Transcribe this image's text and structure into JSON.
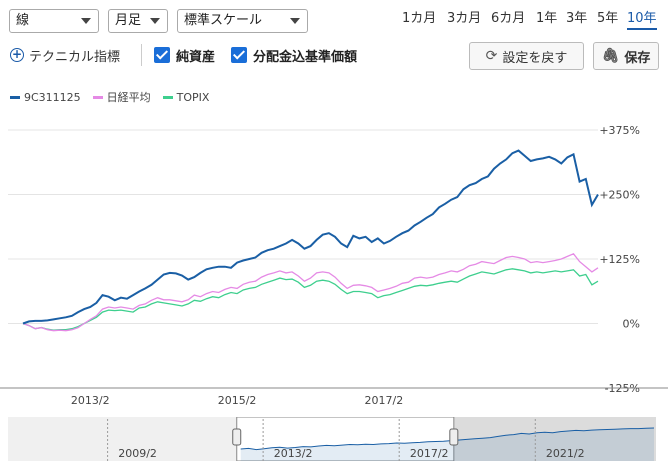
{
  "controls": {
    "chart_type": "線",
    "interval": "月足",
    "scale": "標準スケール"
  },
  "periods": [
    {
      "label": "1カ月",
      "active": false
    },
    {
      "label": "3カ月",
      "active": false
    },
    {
      "label": "6カ月",
      "active": false
    },
    {
      "label": "1年",
      "active": false
    },
    {
      "label": "3年",
      "active": false
    },
    {
      "label": "5年",
      "active": false
    },
    {
      "label": "10年",
      "active": true
    }
  ],
  "toolbar": {
    "technical_label": "テクニカル指標",
    "net_assets_label": "純資産",
    "nav_label": "分配金込基準価額",
    "reset_label": "設定を戻す",
    "save_label": "保存"
  },
  "legend": [
    {
      "name": "9C311125",
      "color": "#1a5fa5"
    },
    {
      "name": "日経平均",
      "color": "#e58ae5"
    },
    {
      "name": "TOPIX",
      "color": "#3ecf8e"
    }
  ],
  "chart_data": {
    "type": "line",
    "ylim": [
      -125,
      375
    ],
    "y_ticks": [
      -125,
      0,
      125,
      250,
      375
    ],
    "y_tick_labels": [
      "-125%",
      "0%",
      "+125%",
      "+250%",
      "+375%"
    ],
    "x_ticks": [
      {
        "label": "2013/2",
        "index": 11
      },
      {
        "label": "2015/2",
        "index": 35
      },
      {
        "label": "2017/2",
        "index": 59
      }
    ],
    "series": [
      {
        "name": "9C311125",
        "color": "#1a5fa5",
        "values": [
          0,
          4,
          5,
          5,
          6,
          8,
          10,
          12,
          15,
          22,
          28,
          32,
          40,
          55,
          52,
          45,
          50,
          48,
          55,
          62,
          68,
          75,
          85,
          95,
          98,
          97,
          93,
          85,
          90,
          98,
          105,
          108,
          110,
          110,
          108,
          118,
          122,
          125,
          128,
          137,
          142,
          145,
          150,
          155,
          162,
          155,
          145,
          150,
          162,
          172,
          175,
          168,
          155,
          148,
          170,
          165,
          168,
          158,
          165,
          155,
          160,
          168,
          175,
          180,
          190,
          197,
          205,
          212,
          225,
          232,
          240,
          245,
          260,
          268,
          272,
          280,
          285,
          300,
          310,
          318,
          330,
          335,
          325,
          315,
          318,
          320,
          323,
          318,
          310,
          322,
          328,
          275,
          280,
          230,
          250
        ]
      },
      {
        "name": "日経平均",
        "color": "#e58ae5",
        "values": [
          0,
          -4,
          -10,
          -8,
          -12,
          -14,
          -13,
          -14,
          -12,
          -8,
          0,
          8,
          15,
          28,
          32,
          30,
          32,
          30,
          28,
          35,
          38,
          45,
          50,
          46,
          46,
          44,
          42,
          46,
          55,
          52,
          58,
          62,
          60,
          66,
          70,
          68,
          76,
          80,
          82,
          90,
          95,
          98,
          102,
          98,
          100,
          92,
          82,
          88,
          98,
          100,
          98,
          90,
          78,
          68,
          74,
          75,
          73,
          70,
          62,
          65,
          68,
          72,
          78,
          80,
          88,
          90,
          88,
          90,
          95,
          98,
          102,
          100,
          105,
          112,
          115,
          120,
          118,
          116,
          122,
          128,
          130,
          128,
          125,
          118,
          120,
          118,
          120,
          122,
          125,
          130,
          135,
          120,
          110,
          100,
          108
        ]
      },
      {
        "name": "TOPIX",
        "color": "#3ecf8e",
        "values": [
          0,
          -4,
          -10,
          -8,
          -11,
          -13,
          -12,
          -12,
          -10,
          -6,
          0,
          6,
          12,
          22,
          26,
          25,
          26,
          24,
          22,
          30,
          32,
          38,
          42,
          40,
          38,
          36,
          34,
          38,
          45,
          43,
          48,
          52,
          50,
          56,
          60,
          58,
          65,
          68,
          70,
          76,
          80,
          84,
          88,
          85,
          86,
          80,
          70,
          74,
          82,
          84,
          82,
          76,
          66,
          58,
          62,
          62,
          60,
          58,
          50,
          54,
          56,
          60,
          64,
          68,
          72,
          74,
          73,
          75,
          78,
          80,
          82,
          80,
          86,
          92,
          96,
          100,
          98,
          96,
          100,
          104,
          106,
          104,
          102,
          98,
          100,
          98,
          100,
          102,
          100,
          102,
          104,
          92,
          95,
          75,
          82
        ]
      }
    ]
  },
  "navigator": {
    "labels": [
      {
        "label": "2009/2",
        "frac": 0.2
      },
      {
        "label": "2013/2",
        "frac": 0.44
      },
      {
        "label": "2017/2",
        "frac": 0.65
      },
      {
        "label": "2021/2",
        "frac": 0.86
      }
    ],
    "selection": [
      0.353,
      0.688
    ],
    "history_values": [
      20,
      22,
      18,
      21,
      24,
      26,
      23,
      25,
      28,
      27,
      30,
      32,
      31,
      33,
      35,
      34,
      36,
      35,
      37,
      38,
      40,
      39,
      41,
      42,
      44,
      45,
      46,
      48,
      50,
      52,
      54,
      56,
      58,
      62,
      66,
      68,
      72,
      70,
      74,
      76,
      74,
      78,
      80,
      82,
      81,
      83,
      84,
      85,
      86,
      87,
      88,
      88,
      89,
      90
    ]
  }
}
